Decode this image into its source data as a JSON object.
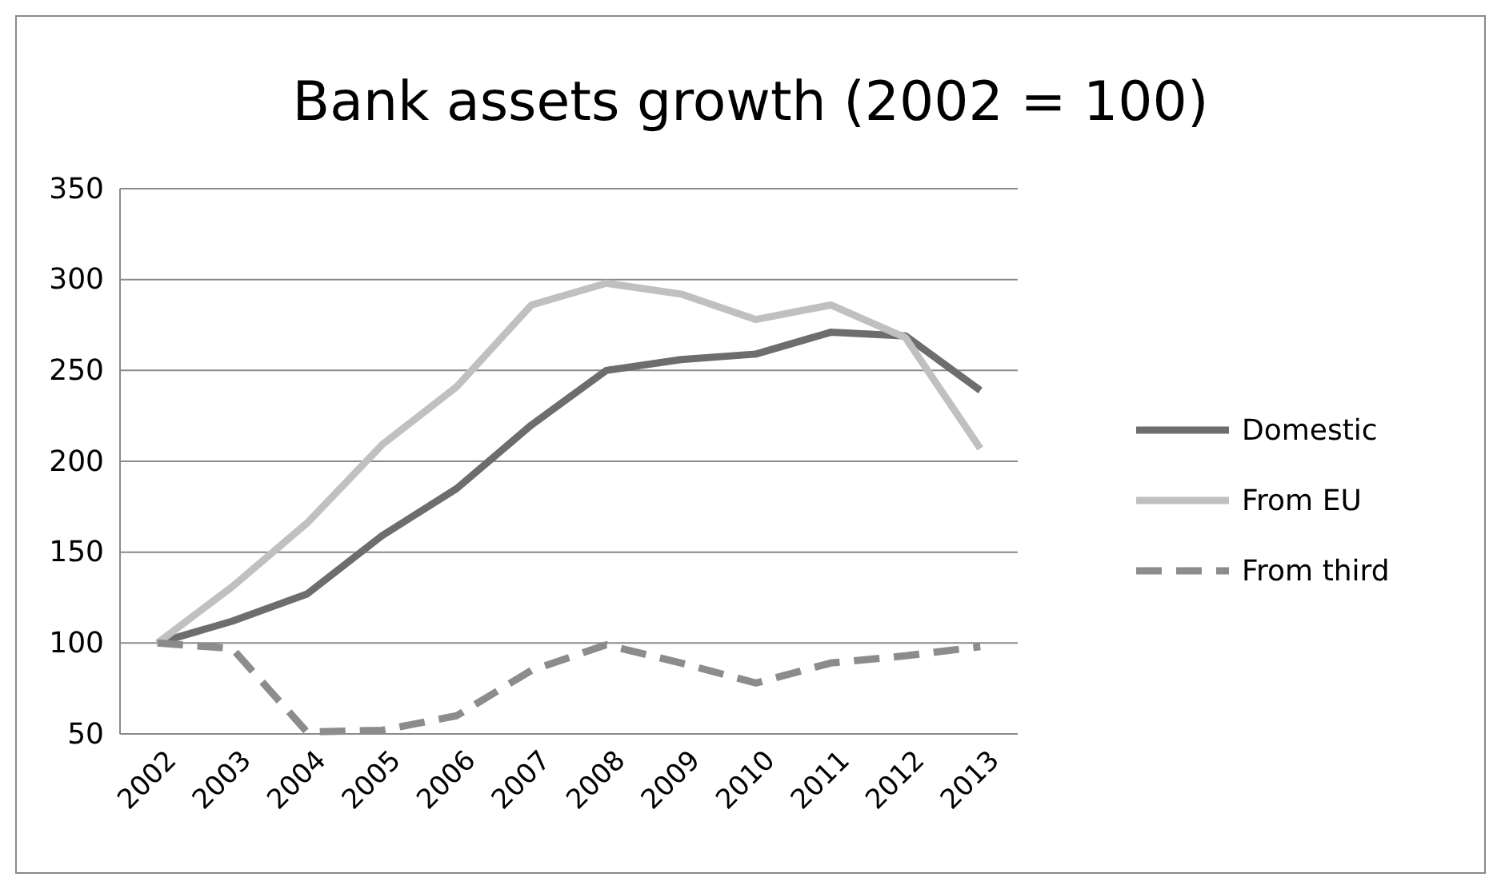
{
  "chart_data": {
    "type": "line",
    "title": "Bank assets growth (2002 = 100)",
    "categories": [
      "2002",
      "2003",
      "2004",
      "2005",
      "2006",
      "2007",
      "2008",
      "2009",
      "2010",
      "2011",
      "2012",
      "2013"
    ],
    "series": [
      {
        "name": "Domestic",
        "color": "#6d6d6d",
        "line_style": "solid",
        "values": [
          100,
          112,
          127,
          159,
          185,
          220,
          250,
          256,
          259,
          271,
          269,
          239
        ]
      },
      {
        "name": "From EU",
        "color": "#c0c0c0",
        "line_style": "solid",
        "values": [
          100,
          131,
          166,
          209,
          241,
          286,
          298,
          292,
          278,
          286,
          268,
          207
        ]
      },
      {
        "name": "From third",
        "color": "#8c8c8c",
        "line_style": "dashed",
        "values": [
          100,
          97,
          51,
          52,
          60,
          85,
          99,
          89,
          78,
          89,
          93,
          98
        ]
      }
    ],
    "ylim": [
      50,
      350
    ],
    "yticks": [
      50,
      100,
      150,
      200,
      250,
      300,
      350
    ],
    "grid": "y",
    "legend": "right",
    "marker": "none"
  }
}
